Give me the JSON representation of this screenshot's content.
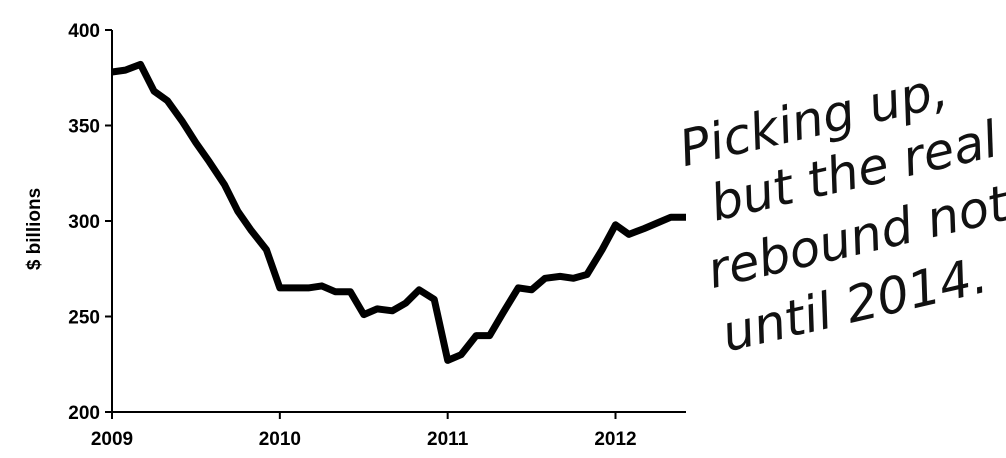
{
  "chart_data": {
    "type": "line",
    "title": "",
    "xlabel": "",
    "ylabel": "$ billions",
    "ylim": [
      200,
      400
    ],
    "xlim": [
      2009,
      2012.42
    ],
    "y_ticks": [
      200,
      250,
      300,
      350,
      400
    ],
    "y_tick_labels": [
      "200",
      "250",
      "300",
      "350",
      "400"
    ],
    "x_ticks": [
      2009,
      2010,
      2011,
      2012
    ],
    "x_tick_labels": [
      "2009",
      "2010",
      "2011",
      "2012"
    ],
    "grid": false,
    "line_color": "#000000",
    "series": [
      {
        "x": [
          2009.0,
          2009.08,
          2009.17,
          2009.25,
          2009.33,
          2009.42,
          2009.5,
          2009.58,
          2009.67,
          2009.75,
          2009.83,
          2009.92,
          2010.0,
          2010.08,
          2010.17,
          2010.25,
          2010.33,
          2010.42,
          2010.5,
          2010.58,
          2010.67,
          2010.75,
          2010.83,
          2010.92,
          2011.0,
          2011.08,
          2011.17,
          2011.25,
          2011.33,
          2011.42,
          2011.5,
          2011.58,
          2011.67,
          2011.75,
          2011.83,
          2011.92,
          2012.0,
          2012.08,
          2012.17,
          2012.25,
          2012.33,
          2012.42
        ],
        "values": [
          378,
          379,
          382,
          368,
          363,
          352,
          341,
          331,
          319,
          305,
          295,
          285,
          265,
          265,
          265,
          266,
          263,
          263,
          251,
          254,
          253,
          257,
          264,
          259,
          227,
          230,
          240,
          240,
          252,
          265,
          264,
          270,
          271,
          270,
          272,
          285,
          298,
          293,
          296,
          299,
          302,
          302
        ]
      }
    ]
  },
  "annotation": {
    "lines": [
      "Picking up,",
      "but the real",
      "rebound not",
      "until 2014."
    ]
  }
}
